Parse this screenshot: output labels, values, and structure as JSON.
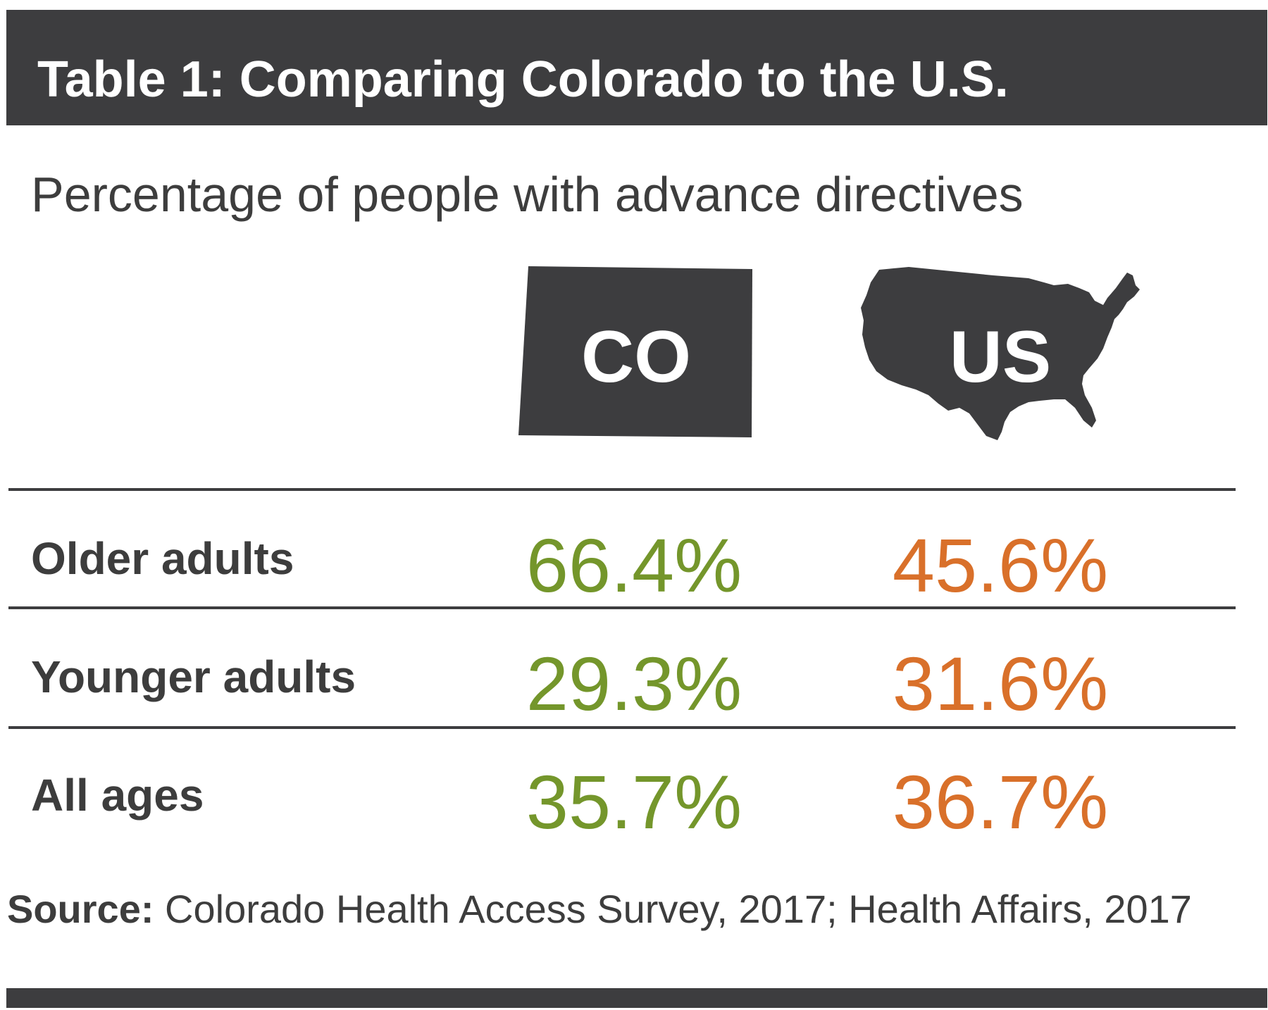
{
  "title": "Table 1: Comparing Colorado to the U.S.",
  "subtitle": "Percentage of people with advance directives",
  "columns": [
    {
      "label": "CO",
      "icon": "colorado-shape-icon"
    },
    {
      "label": "US",
      "icon": "usa-map-icon"
    }
  ],
  "rows": [
    {
      "label": "Older adults",
      "co": "66.4%",
      "us": "45.6%"
    },
    {
      "label": "Younger adults",
      "co": "29.3%",
      "us": "31.6%"
    },
    {
      "label": "All ages",
      "co": "35.7%",
      "us": "36.7%"
    }
  ],
  "source": {
    "label": "Source:",
    "text": " Colorado Health Access Survey, 2017; Health Affairs, 2017"
  },
  "colors": {
    "co": "#74962b",
    "us": "#d9702a",
    "dark": "#3d3d3f"
  },
  "chart_data": {
    "type": "table",
    "title": "Table 1: Comparing Colorado to the U.S.",
    "subtitle": "Percentage of people with advance directives",
    "columns": [
      "CO",
      "US"
    ],
    "categories": [
      "Older adults",
      "Younger adults",
      "All ages"
    ],
    "series": [
      {
        "name": "CO",
        "values": [
          66.4,
          29.3,
          35.7
        ]
      },
      {
        "name": "US",
        "values": [
          45.6,
          31.6,
          36.7
        ]
      }
    ]
  }
}
